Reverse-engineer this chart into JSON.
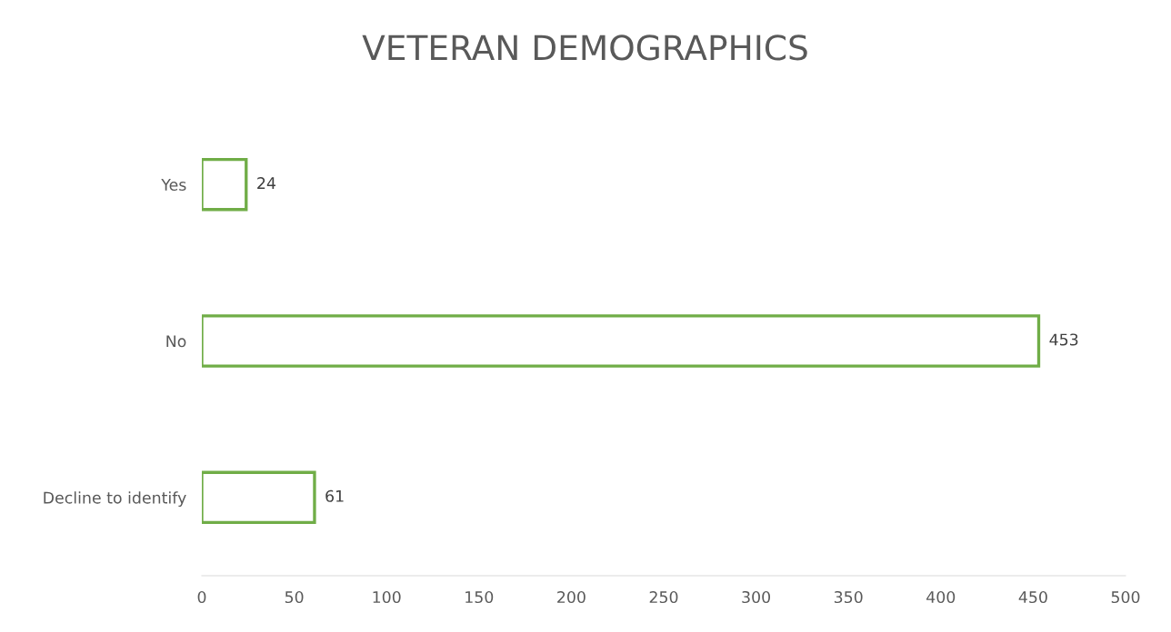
{
  "chart_data": {
    "type": "bar",
    "orientation": "horizontal",
    "title": "VETERAN DEMOGRAPHICS",
    "categories": [
      "Yes",
      "No",
      "Decline to identify"
    ],
    "values": [
      24,
      453,
      61
    ],
    "color": "#70ad47",
    "xlim": [
      0,
      500
    ],
    "xticks": [
      0,
      50,
      100,
      150,
      200,
      250,
      300,
      350,
      400,
      450,
      500
    ],
    "data_labels": true,
    "grid": false,
    "legend": false
  }
}
